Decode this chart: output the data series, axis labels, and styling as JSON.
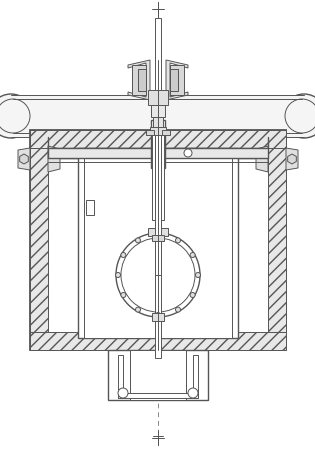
{
  "bg_color": "#ffffff",
  "line_color": "#555555",
  "fig_width": 3.15,
  "fig_height": 4.49,
  "dpi": 100
}
